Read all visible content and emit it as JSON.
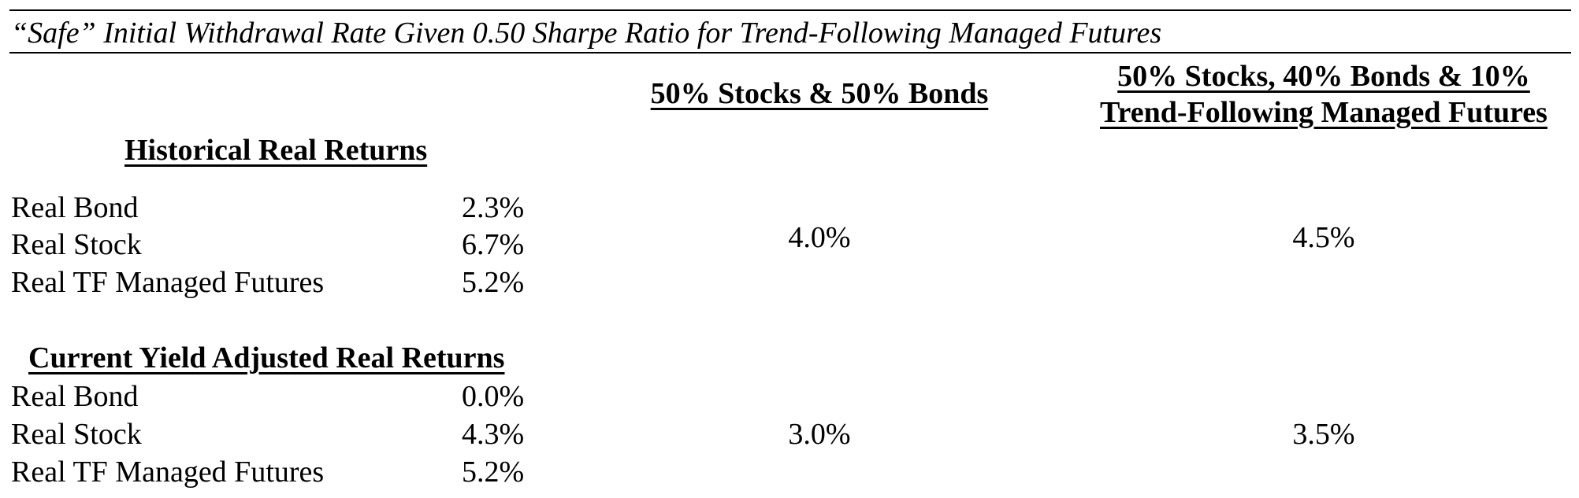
{
  "title": "“Safe” Initial Withdrawal Rate Given 0.50 Sharpe Ratio for Trend-Following Managed Futures",
  "columns": {
    "col1_header": "50% Stocks & 50% Bonds",
    "col2_header_line1": "50% Stocks, 40% Bonds & 10%",
    "col2_header_line2": "Trend-Following Managed Futures"
  },
  "sections": [
    {
      "heading": "Historical Real Returns",
      "rows": [
        {
          "label": "Real Bond",
          "value": "2.3%"
        },
        {
          "label": "Real Stock",
          "value": "6.7%"
        },
        {
          "label": "Real TF Managed Futures",
          "value": "5.2%"
        }
      ],
      "rate_col1": "4.0%",
      "rate_col2": "4.5%"
    },
    {
      "heading": "Current Yield Adjusted Real Returns",
      "rows": [
        {
          "label": "Real Bond",
          "value": "0.0%"
        },
        {
          "label": "Real Stock",
          "value": "4.3%"
        },
        {
          "label": "Real TF Managed Futures",
          "value": "5.2%"
        }
      ],
      "rate_col1": "3.0%",
      "rate_col2": "3.5%"
    }
  ]
}
